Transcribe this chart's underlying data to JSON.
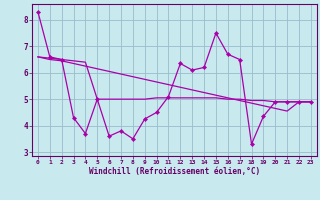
{
  "xlabel": "Windchill (Refroidissement éolien,°C)",
  "bg_color": "#c8eaee",
  "plot_bg_color": "#c8eaee",
  "line_color": "#aa00aa",
  "grid_color": "#99bbcc",
  "spine_color": "#660066",
  "tick_color": "#660066",
  "x_values": [
    0,
    1,
    2,
    3,
    4,
    5,
    6,
    7,
    8,
    9,
    10,
    11,
    12,
    13,
    14,
    15,
    16,
    17,
    18,
    19,
    20,
    21,
    22,
    23
  ],
  "series1": [
    8.3,
    6.6,
    6.5,
    4.3,
    3.7,
    5.0,
    3.6,
    3.8,
    3.5,
    4.25,
    4.5,
    5.1,
    6.35,
    6.1,
    6.2,
    7.5,
    6.7,
    6.5,
    3.3,
    4.35,
    4.9,
    4.9,
    4.9,
    4.9
  ],
  "series2": [
    6.6,
    6.5,
    6.45,
    6.35,
    6.25,
    6.15,
    6.05,
    5.95,
    5.85,
    5.75,
    5.65,
    5.55,
    5.45,
    5.35,
    5.25,
    5.15,
    5.05,
    4.95,
    4.85,
    4.75,
    4.65,
    4.55,
    4.9,
    4.9
  ],
  "series3": [
    6.6,
    6.55,
    6.5,
    6.45,
    6.4,
    5.0,
    5.0,
    5.0,
    5.0,
    5.0,
    5.05,
    5.05,
    5.05,
    5.05,
    5.05,
    5.05,
    5.0,
    5.0,
    4.95,
    4.95,
    4.9,
    4.9,
    4.9,
    4.9
  ],
  "ylim": [
    2.85,
    8.6
  ],
  "xlim": [
    -0.5,
    23.5
  ],
  "yticks": [
    3,
    4,
    5,
    6,
    7,
    8
  ],
  "xticks": [
    0,
    1,
    2,
    3,
    4,
    5,
    6,
    7,
    8,
    9,
    10,
    11,
    12,
    13,
    14,
    15,
    16,
    17,
    18,
    19,
    20,
    21,
    22,
    23
  ]
}
